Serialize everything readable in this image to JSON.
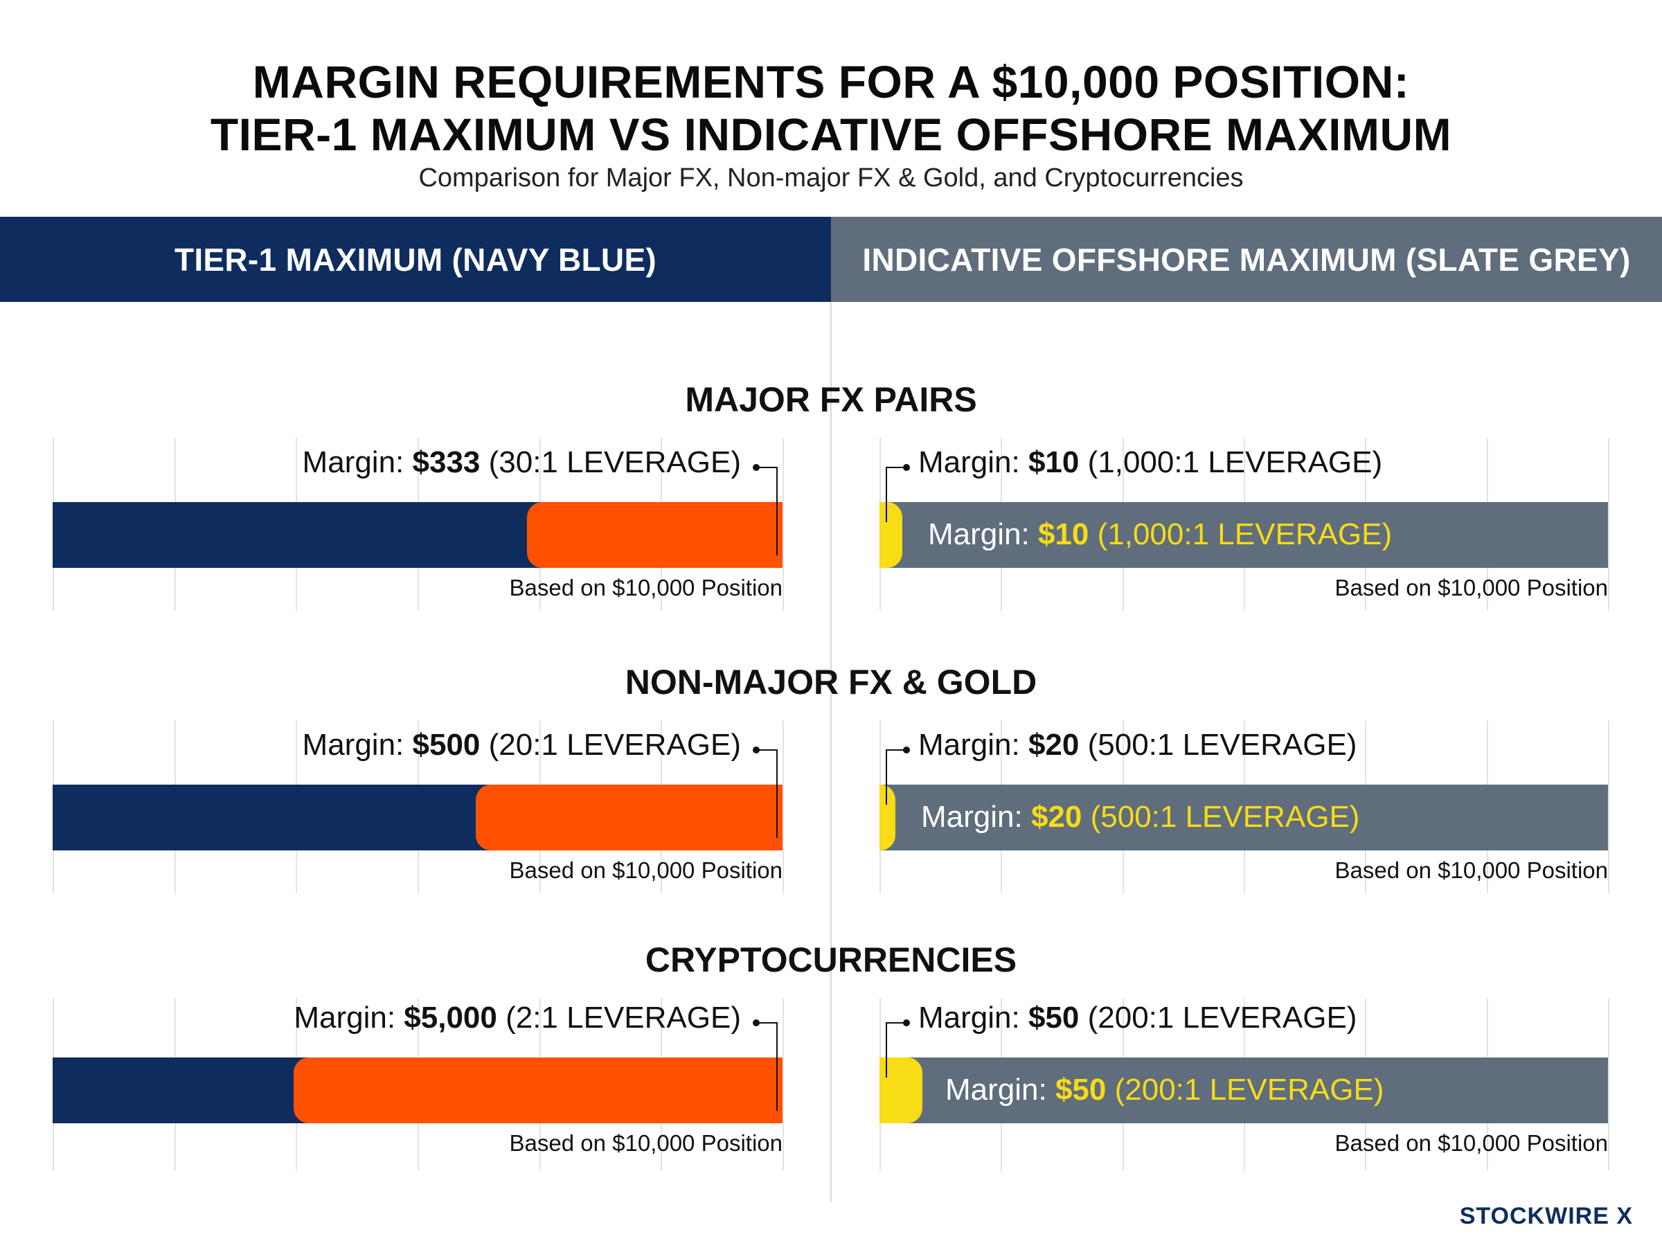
{
  "title_line1": "MARGIN REQUIREMENTS FOR A $10,000 POSITION:",
  "title_line2": "TIER-1 MAXIMUM VS INDICATIVE OFFSHORE MAXIMUM",
  "subtitle": "Comparison for Major FX, Non-major FX & Gold, and Cryptocurrencies",
  "headers": {
    "left": "TIER-1 MAXIMUM (NAVY BLUE)",
    "right": "INDICATIVE OFFSHORE MAXIMUM (SLATE GREY)"
  },
  "colors": {
    "navy": "#0e2d5e",
    "slate": "#5f6d7c",
    "orange": "#ff5100",
    "yellow": "#f7dc16"
  },
  "margin_label": "Margin:",
  "basis_label": "Based on $10,000 Position",
  "brand": "STOCKWIRE X",
  "chart_data": {
    "type": "bar",
    "position_size": 10000,
    "series": [
      {
        "name": "TIER-1 MAXIMUM (NAVY BLUE)",
        "color": "#0e2d5e",
        "highlight_color": "#ff5100"
      },
      {
        "name": "INDICATIVE OFFSHORE MAXIMUM (SLATE GREY)",
        "color": "#5f6d7c",
        "highlight_color": "#f7dc16"
      }
    ],
    "sections": [
      {
        "title": "MAJOR FX PAIRS",
        "tier1": {
          "margin": "$333",
          "leverage": "(30:1 LEVERAGE)",
          "value": 333
        },
        "offshore": {
          "margin": "$10",
          "leverage": "(1,000:1 LEVERAGE)",
          "value": 10
        }
      },
      {
        "title": "NON-MAJOR FX & GOLD",
        "tier1": {
          "margin": "$500",
          "leverage": "(20:1 LEVERAGE)",
          "value": 500
        },
        "offshore": {
          "margin": "$20",
          "leverage": "(500:1 LEVERAGE)",
          "value": 20
        }
      },
      {
        "title": "CRYPTOCURRENCIES",
        "tier1": {
          "margin": "$5,000",
          "leverage": "(2:1 LEVERAGE)",
          "value": 5000
        },
        "offshore": {
          "margin": "$50",
          "leverage": "(200:1 LEVERAGE)",
          "value": 50
        }
      }
    ]
  }
}
